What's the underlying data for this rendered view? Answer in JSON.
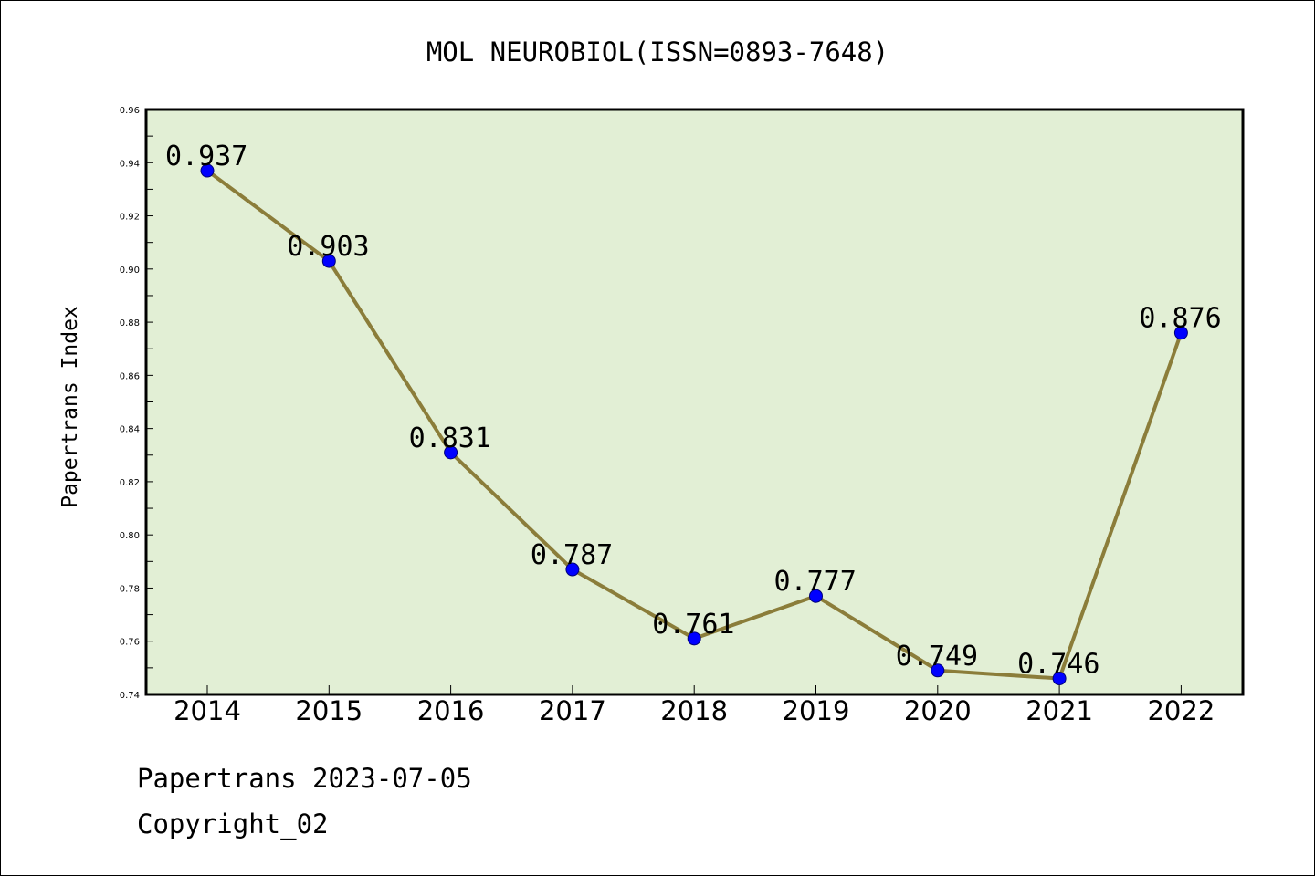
{
  "chart_data": {
    "type": "line",
    "title": "MOL NEUROBIOL(ISSN=0893-7648)",
    "xlabel": "",
    "ylabel": "Papertrans Index",
    "categories": [
      "2014",
      "2015",
      "2016",
      "2017",
      "2018",
      "2019",
      "2020",
      "2021",
      "2022"
    ],
    "series": [
      {
        "values": [
          0.937,
          0.903,
          0.831,
          0.787,
          0.761,
          0.777,
          0.749,
          0.746,
          0.876
        ],
        "labels": [
          "0.937",
          "0.903",
          "0.831",
          "0.787",
          "0.761",
          "0.777",
          "0.749",
          "0.746",
          "0.876"
        ]
      }
    ],
    "ylim": [
      0.74,
      0.96
    ],
    "yticks": [
      "0.74",
      "0.76",
      "0.78",
      "0.80",
      "0.82",
      "0.84",
      "0.86",
      "0.88",
      "0.90",
      "0.92",
      "0.94",
      "0.96"
    ],
    "grid": false,
    "legend": "none",
    "colors": {
      "plot_background": "#e2efd5",
      "line": "#8b7d3a",
      "marker": "#0000ff",
      "axes": "#000000"
    }
  },
  "footer": {
    "source": "Papertrans 2023-07-05",
    "copyright": "Copyright_02"
  }
}
